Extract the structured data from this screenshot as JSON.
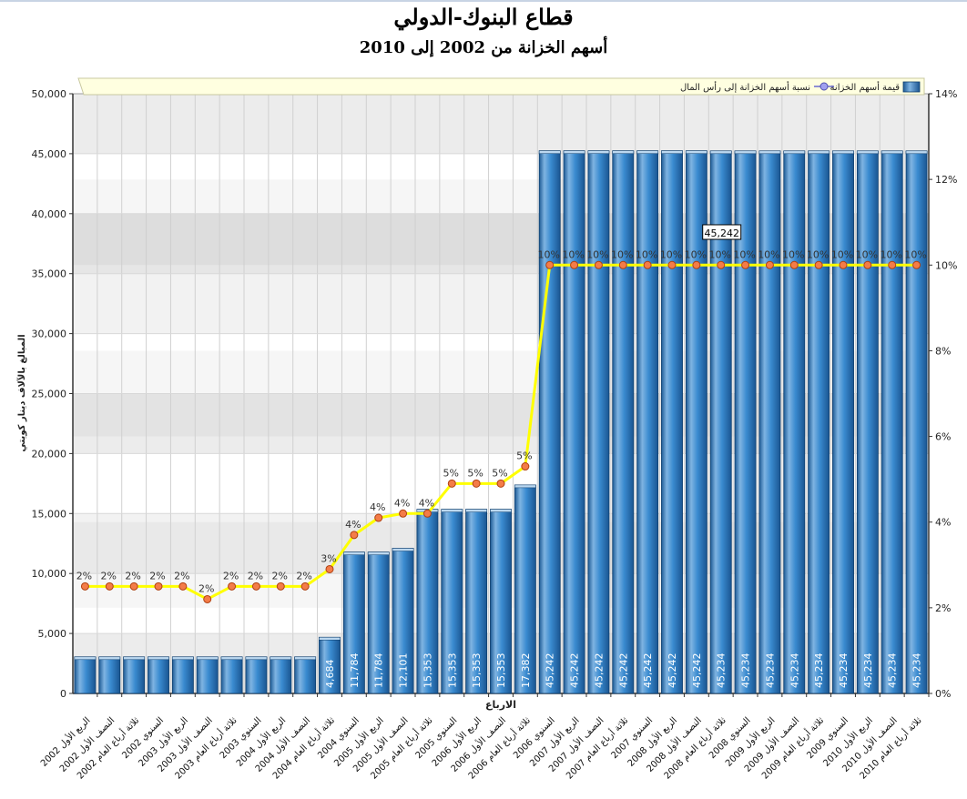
{
  "chart_data": {
    "type": "bar",
    "title": "قطاع البنوك-الدولي",
    "subtitle": "أسهم الخزانة من 2002 إلى 2010",
    "xlabel": "الارباع",
    "ylabel": "المبالغ بالآلاف دينار كويتي",
    "ylim": [
      0,
      50000
    ],
    "y2lim": [
      0,
      14
    ],
    "yticks": [
      "0",
      "5,000",
      "10,000",
      "15,000",
      "20,000",
      "25,000",
      "30,000",
      "35,000",
      "40,000",
      "45,000",
      "50,000"
    ],
    "y2ticks": [
      "0%",
      "2%",
      "4%",
      "6%",
      "8%",
      "10%",
      "12%",
      "14%"
    ],
    "grid": true,
    "legend_position": "top-right",
    "categories": [
      "الربع الأول 2002",
      "النصف الأول 2002",
      "ثلاثة أرباع العام 2002",
      "السنوي 2002",
      "الربع الأول 2003",
      "النصف الأول 2003",
      "ثلاثة أرباع العام 2003",
      "السنوي 2003",
      "الربع الأول 2004",
      "النصف الأول 2004",
      "ثلاثة أرباع العام 2004",
      "السنوي 2004",
      "الربع الأول 2005",
      "النصف الأول 2005",
      "ثلاثة أرباع العام 2005",
      "السنوي 2005",
      "الربع الأول 2006",
      "النصف الأول 2006",
      "ثلاثة أرباع العام 2006",
      "السنوي 2006",
      "الربع الأول 2007",
      "النصف الأول 2007",
      "ثلاثة أرباع العام 2007",
      "السنوي 2007",
      "الربع الأول 2008",
      "النصف الأول 2008",
      "ثلاثة أرباع العام 2008",
      "السنوي 2008",
      "الربع الأول 2009",
      "النصف الأول 2009",
      "ثلاثة أرباع العام 2009",
      "السنوي 2009",
      "الربع الأول 2010",
      "النصف الأول 2010",
      "ثلاثة أرباع العام 2010"
    ],
    "series": [
      {
        "name": "قيمة أسهم الخزانة",
        "type": "bar",
        "axis": "left",
        "color": "#2f7fc4",
        "values": [
          3050,
          3050,
          3050,
          3050,
          3050,
          3050,
          3050,
          3050,
          3050,
          3050,
          4684,
          11784,
          11784,
          12101,
          15353,
          15353,
          15353,
          15353,
          17382,
          45242,
          45242,
          45242,
          45242,
          45242,
          45242,
          45242,
          45234,
          45234,
          45234,
          45234,
          45234,
          45234,
          45234,
          45234,
          45234
        ],
        "labels": [
          "",
          "",
          "",
          "",
          "",
          "",
          "",
          "",
          "",
          "",
          "4,684",
          "11,784",
          "11,784",
          "12,101",
          "15,353",
          "15,353",
          "15,353",
          "15,353",
          "17,382",
          "45,242",
          "45,242",
          "45,242",
          "45,242",
          "45,242",
          "45,242",
          "45,242",
          "45,234",
          "45,234",
          "45,234",
          "45,234",
          "45,234",
          "45,234",
          "45,234",
          "45,234",
          "45,234"
        ]
      },
      {
        "name": "نسبة أسهم الخزانة إلى رأس المال",
        "type": "line",
        "axis": "right",
        "color": "#ffff00",
        "values": [
          2.5,
          2.5,
          2.5,
          2.5,
          2.5,
          2.2,
          2.5,
          2.5,
          2.5,
          2.5,
          2.9,
          3.7,
          4.1,
          4.2,
          4.2,
          4.9,
          4.9,
          4.9,
          5.3,
          10,
          10,
          10,
          10,
          10,
          10,
          10,
          10,
          10,
          10,
          10,
          10,
          10,
          10,
          10,
          10
        ],
        "labels": [
          "2%",
          "2%",
          "2%",
          "2%",
          "2%",
          "2%",
          "2%",
          "2%",
          "2%",
          "2%",
          "3%",
          "4%",
          "4%",
          "4%",
          "4%",
          "5%",
          "5%",
          "5%",
          "5%",
          "10%",
          "10%",
          "10%",
          "10%",
          "10%",
          "10%",
          "10%",
          "10%",
          "10%",
          "10%",
          "10%",
          "10%",
          "10%",
          "10%",
          "10%",
          "10%"
        ]
      }
    ],
    "tooltip": "45,242",
    "colors": {
      "bar": "#2f7fc4",
      "bar_light": "#7fb4e2",
      "bar_dark": "#1d5a94",
      "line": "#ffff00",
      "marker": "#f47c48",
      "legend_bg": "#ffffe0"
    }
  }
}
